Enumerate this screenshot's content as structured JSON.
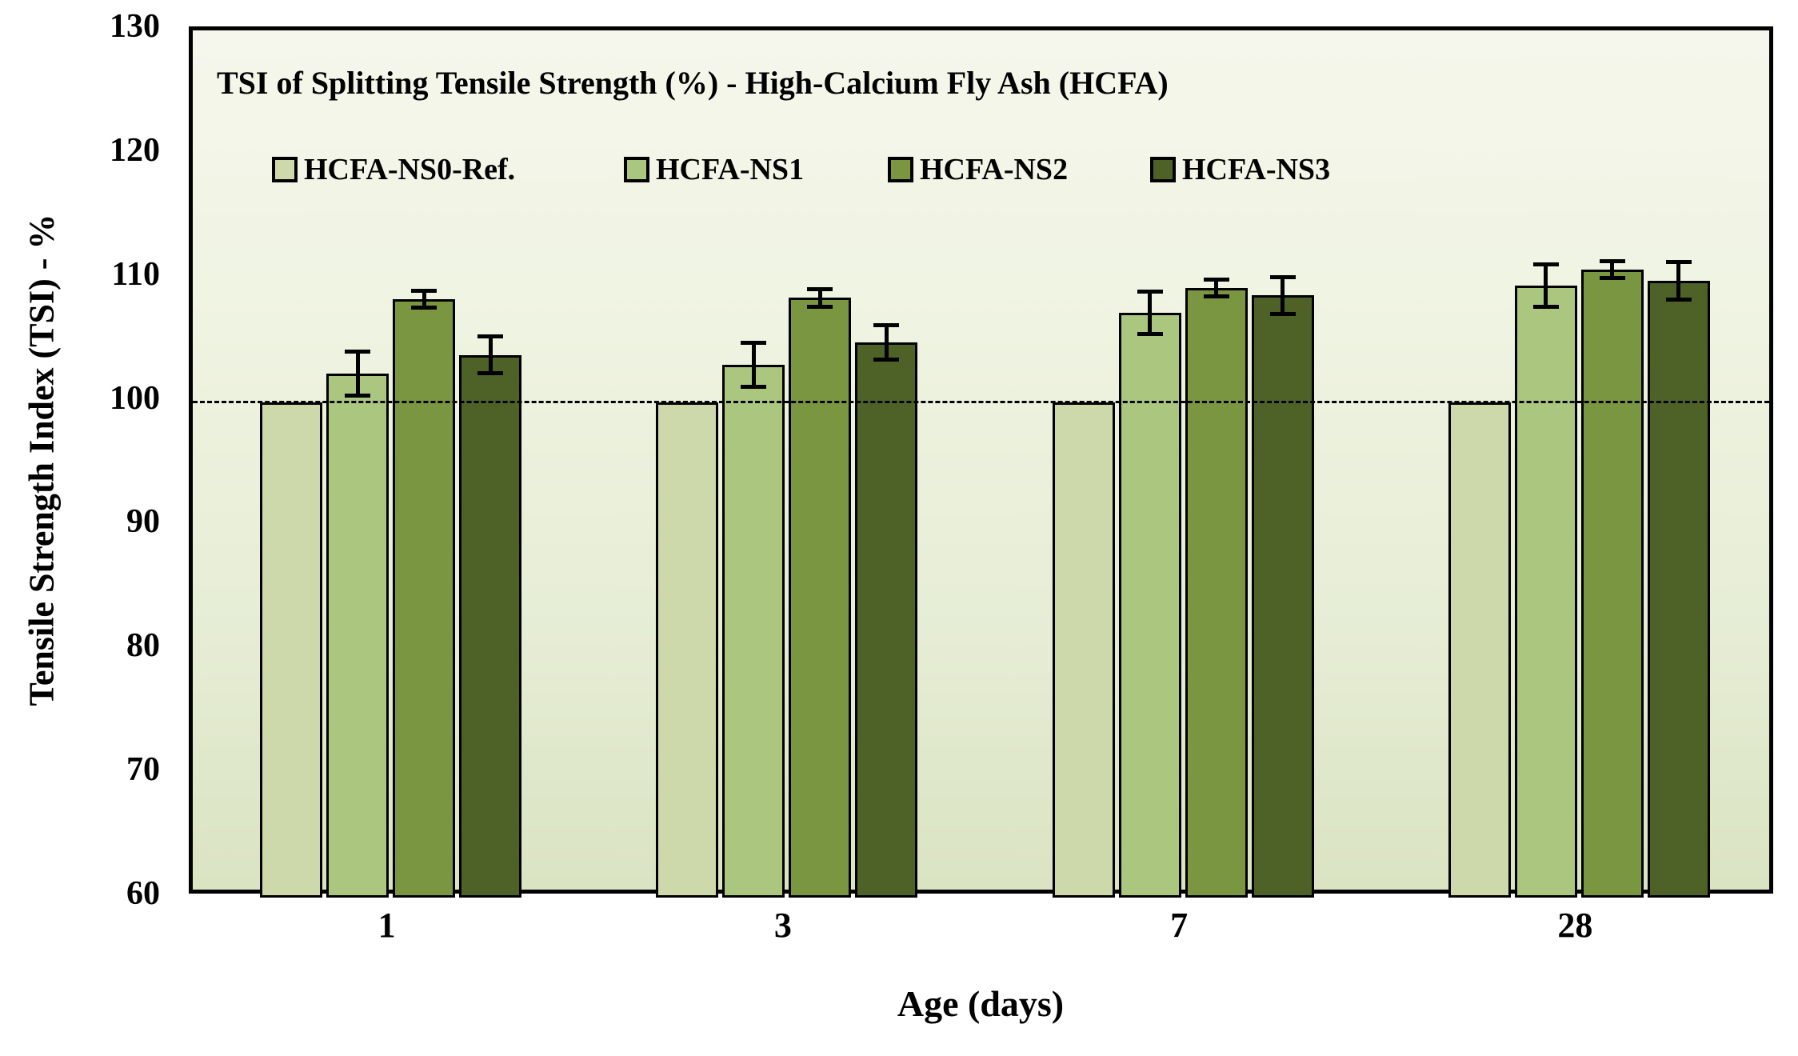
{
  "chart_data": {
    "type": "bar",
    "title": "TSI of Splitting Tensile Strength (%)  - High-Calcium Fly Ash (HCFA)",
    "xlabel": "Age (days)",
    "ylabel": "Tensile Strength Index (TSI)  - %",
    "categories": [
      "1",
      "3",
      "7",
      "28"
    ],
    "series": [
      {
        "name": "HCFA-NS0-Ref.",
        "color": "#cdd9ab",
        "values": [
          100,
          100,
          100,
          100
        ],
        "errors": [
          0,
          0,
          0,
          0
        ]
      },
      {
        "name": "HCFA-NS1",
        "color": "#abc67e",
        "values": [
          102.3,
          103.0,
          107.2,
          109.4
        ],
        "errors": [
          1.8,
          1.8,
          1.7,
          1.7
        ]
      },
      {
        "name": "HCFA-NS2",
        "color": "#7a9640",
        "values": [
          108.3,
          108.4,
          109.2,
          110.7
        ],
        "errors": [
          0.7,
          0.7,
          0.7,
          0.7
        ]
      },
      {
        "name": "HCFA-NS3",
        "color": "#4e6126",
        "values": [
          103.8,
          104.8,
          108.6,
          109.8
        ],
        "errors": [
          1.5,
          1.4,
          1.5,
          1.5
        ]
      }
    ],
    "ylim": [
      60,
      130
    ],
    "yticks": [
      130,
      120,
      110,
      100,
      90,
      80,
      70,
      60
    ],
    "reference_line": 100,
    "grid": false,
    "legend_position": "inside-top-left",
    "bar_outline_color": "#000000",
    "error_bar_color": "#000000",
    "frame_color": "#000000",
    "plot_bg_top": "#f5f7ec",
    "plot_bg_bottom": "#dae3c2"
  }
}
